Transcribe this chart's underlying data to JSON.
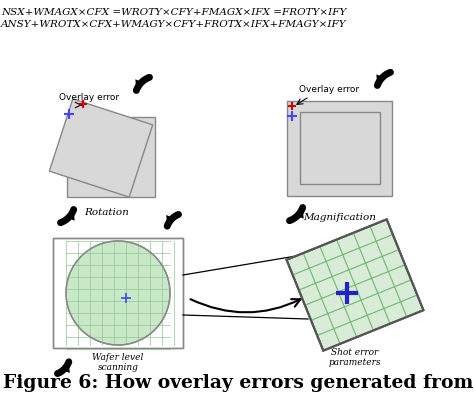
{
  "fig_width": 4.74,
  "fig_height": 3.97,
  "dpi": 100,
  "bg_color": "#ffffff",
  "top_text1": "NSX+WMAGX×CFX =WROTY×CFY+FMAGX×IFX =FROTY×IFY",
  "top_text2": "ANSY+WROTX×CFX+WMAGY×CFY+FROTX×IFX+FMAGY×IFY",
  "bottom_text": "Figure 6: How overlay errors generated from",
  "label_rotation": "Rotation",
  "label_magnification": "Magnification",
  "label_wafer_level": "Wafer level\nscanning",
  "label_shot_params": "Shot error\nparameters",
  "label_overlay_error_left": "Overlay error",
  "label_overlay_error_right": "Overlay error",
  "gray_rect": "#d8d8d8",
  "grid_green": "#c8e8c8",
  "grid_line_green": "#90c890",
  "shot_bg": "#d8ecd8"
}
